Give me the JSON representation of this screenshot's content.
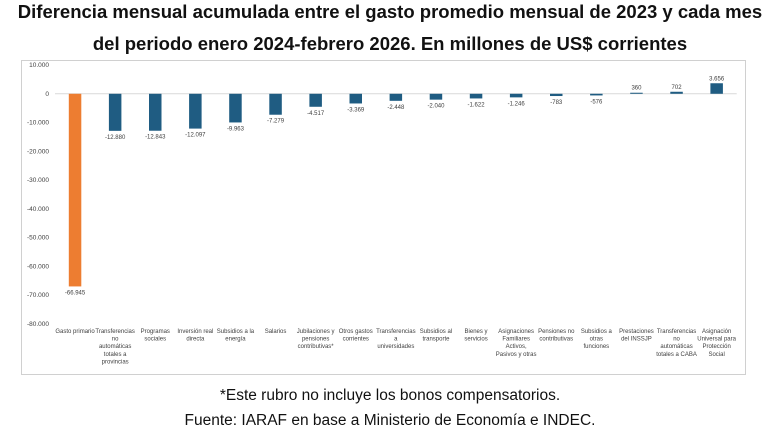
{
  "title_line1": "Diferencia mensual acumulada entre el gasto promedio mensual de 2023 y cada mes",
  "title_line2": "del periodo enero 2024-febrero 2026. En millones de US$ corrientes",
  "footnote": "*Este rubro no incluye los bonos compensatorios.",
  "source": "Fuente: IARAF en base a Ministerio de Economía e INDEC.",
  "colors": {
    "highlight": "#ED7D31",
    "bar": "#1F5C82",
    "gridline": "#d9d9d9",
    "text": "#404040"
  },
  "chart_data": {
    "type": "bar",
    "title": "",
    "xlabel": "",
    "ylabel": "",
    "ylim": [
      -80000,
      10000
    ],
    "yticks": [
      10000,
      0,
      -10000,
      -20000,
      -30000,
      -40000,
      -50000,
      -60000,
      -70000,
      -80000
    ],
    "ytick_labels": [
      "10.000",
      "0",
      "-10.000",
      "-20.000",
      "-30.000",
      "-40.000",
      "-50.000",
      "-60.000",
      "-70.000",
      "-80.000"
    ],
    "grid": false,
    "categories": [
      [
        "Gasto primario"
      ],
      [
        "Transferencias",
        "no",
        "automáticas",
        "totales a",
        "provincias"
      ],
      [
        "Programas",
        "sociales"
      ],
      [
        "Inversión real",
        "directa"
      ],
      [
        "Subsidios a la",
        "energía"
      ],
      [
        "Salarios"
      ],
      [
        "Jubilaciones y",
        "pensiones",
        "contributivas*"
      ],
      [
        "Otros gastos",
        "corrientes"
      ],
      [
        "Transferencias",
        "a",
        "universidades"
      ],
      [
        "Subsidios al",
        "transporte"
      ],
      [
        "Bienes y",
        "servicios"
      ],
      [
        "Asignaciones",
        "Familiares",
        "Activos,",
        "Pasivos y otras"
      ],
      [
        "Pensiones no",
        "contributivas"
      ],
      [
        "Subsidios a",
        "otras",
        "funciones"
      ],
      [
        "Prestaciones",
        "del INSSJP"
      ],
      [
        "Transferencias",
        "no",
        "automáticas",
        "totales a CABA"
      ],
      [
        "Asignación",
        "Universal para",
        "Protección",
        "Social"
      ]
    ],
    "values": [
      -66945,
      -12880,
      -12843,
      -12097,
      -9963,
      -7279,
      -4517,
      -3369,
      -2448,
      -2040,
      -1622,
      -1246,
      -783,
      -576,
      360,
      702,
      3656
    ],
    "value_labels": [
      "-66.945",
      "-12.880",
      "-12.843",
      "-12.097",
      "-9.963",
      "-7.279",
      "-4.517",
      "-3.369",
      "-2.448",
      "-2.040",
      "-1.622",
      "-1.246",
      "-783",
      "-576",
      "360",
      "702",
      "3.656"
    ],
    "highlight_index": 0
  }
}
